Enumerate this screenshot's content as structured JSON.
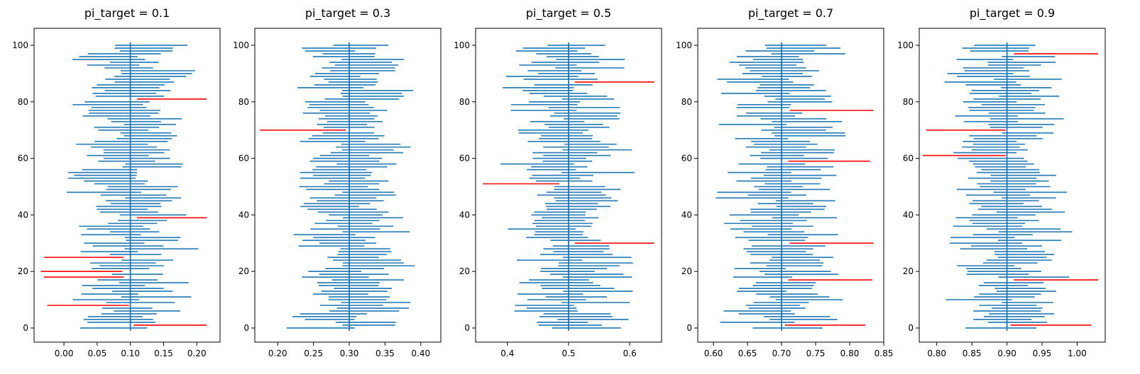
{
  "colors": {
    "interval": "#1f77b4",
    "miss": "#ff0000",
    "target_line": "#1f77b4",
    "axes": "#000000"
  },
  "chart_data": [
    {
      "type": "interval",
      "title": "pi_target = 0.1",
      "target": 0.1,
      "n_intervals": 101,
      "xticks": [
        "0.00",
        "0.05",
        "0.10",
        "0.15",
        "0.20"
      ],
      "xlim": [
        -0.045,
        0.235
      ],
      "yticks": [
        "0",
        "20",
        "40",
        "60",
        "80",
        "100"
      ],
      "ylim": [
        -5,
        106
      ],
      "missed_intervals": [
        {
          "index": 1,
          "low": 0.105,
          "high": 0.215
        },
        {
          "index": 8,
          "low": -0.025,
          "high": 0.098
        },
        {
          "index": 18,
          "low": -0.03,
          "high": 0.09
        },
        {
          "index": 20,
          "low": -0.035,
          "high": 0.088
        },
        {
          "index": 25,
          "low": -0.03,
          "high": 0.09
        },
        {
          "index": 39,
          "low": 0.11,
          "high": 0.215
        },
        {
          "index": 81,
          "low": 0.11,
          "high": 0.215
        }
      ]
    },
    {
      "type": "interval",
      "title": "pi_target = 0.3",
      "target": 0.3,
      "n_intervals": 101,
      "xticks": [
        "0.20",
        "0.25",
        "0.30",
        "0.35",
        "0.40"
      ],
      "xlim": [
        0.168,
        0.428
      ],
      "yticks": [
        "0",
        "20",
        "40",
        "60",
        "80",
        "100"
      ],
      "ylim": [
        -5,
        106
      ],
      "missed_intervals": [
        {
          "index": 70,
          "low": 0.175,
          "high": 0.295
        }
      ]
    },
    {
      "type": "interval",
      "title": "pi_target = 0.5",
      "target": 0.5,
      "n_intervals": 101,
      "xticks": [
        "0.4",
        "0.5",
        "0.6"
      ],
      "xlim": [
        0.348,
        0.652
      ],
      "yticks": [
        "0",
        "20",
        "40",
        "60",
        "80",
        "100"
      ],
      "ylim": [
        -5,
        106
      ],
      "missed_intervals": [
        {
          "index": 30,
          "low": 0.51,
          "high": 0.64
        },
        {
          "index": 51,
          "low": 0.36,
          "high": 0.485
        },
        {
          "index": 87,
          "low": 0.51,
          "high": 0.64
        }
      ]
    },
    {
      "type": "interval",
      "title": "pi_target = 0.7",
      "target": 0.7,
      "n_intervals": 101,
      "xticks": [
        "0.60",
        "0.65",
        "0.70",
        "0.75",
        "0.80",
        "0.85"
      ],
      "xlim": [
        0.577,
        0.85
      ],
      "yticks": [
        "0",
        "20",
        "40",
        "60",
        "80",
        "100"
      ],
      "ylim": [
        -5,
        106
      ],
      "missed_intervals": [
        {
          "index": 1,
          "low": 0.705,
          "high": 0.823
        },
        {
          "index": 17,
          "low": 0.71,
          "high": 0.833
        },
        {
          "index": 30,
          "low": 0.712,
          "high": 0.835
        },
        {
          "index": 59,
          "low": 0.71,
          "high": 0.83
        },
        {
          "index": 77,
          "low": 0.712,
          "high": 0.835
        }
      ]
    },
    {
      "type": "interval",
      "title": "pi_target = 0.9",
      "target": 0.9,
      "n_intervals": 101,
      "xticks": [
        "0.80",
        "0.85",
        "0.90",
        "0.95",
        "1.00"
      ],
      "xlim": [
        0.775,
        1.04
      ],
      "yticks": [
        "0",
        "20",
        "40",
        "60",
        "80",
        "100"
      ],
      "ylim": [
        -5,
        106
      ],
      "missed_intervals": [
        {
          "index": 1,
          "low": 0.905,
          "high": 1.02
        },
        {
          "index": 17,
          "low": 0.91,
          "high": 1.03
        },
        {
          "index": 61,
          "low": 0.78,
          "high": 0.898
        },
        {
          "index": 70,
          "low": 0.785,
          "high": 0.898
        },
        {
          "index": 97,
          "low": 0.91,
          "high": 1.03
        }
      ]
    }
  ]
}
